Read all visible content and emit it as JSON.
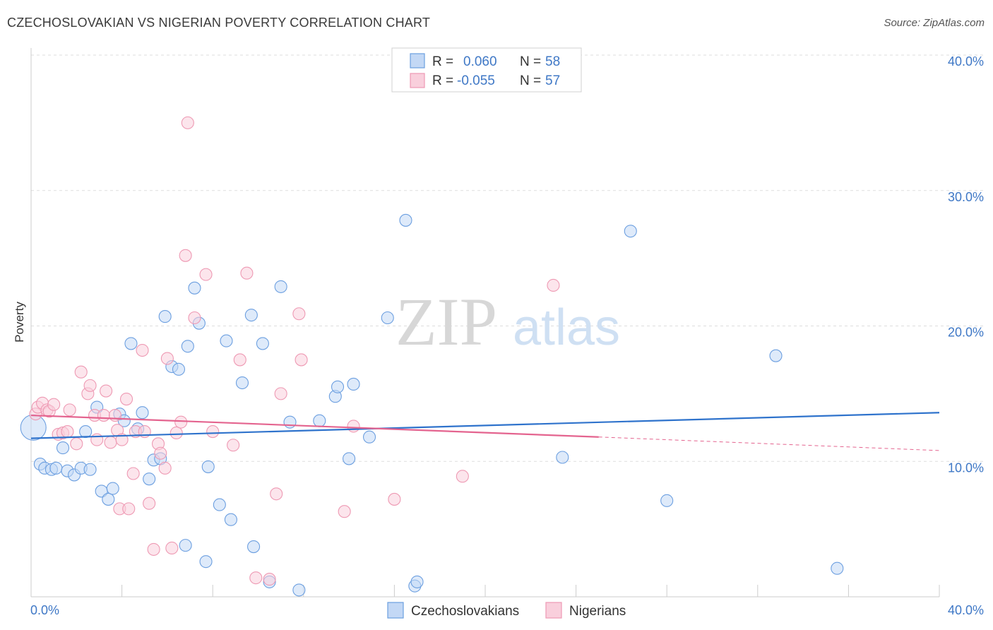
{
  "header": {
    "title": "CZECHOSLOVAKIAN VS NIGERIAN POVERTY CORRELATION CHART",
    "source": "Source: ZipAtlas.com"
  },
  "watermark": {
    "zip": "ZIP",
    "atlas": "atlas"
  },
  "chart_data": {
    "type": "scatter",
    "ylabel": "Poverty",
    "xlabel": "",
    "xlim": [
      0,
      40
    ],
    "ylim": [
      0,
      40
    ],
    "x_tick_labels": [
      {
        "value": 0,
        "label": "0.0%"
      },
      {
        "value": 40,
        "label": "40.0%"
      }
    ],
    "y_tick_labels": [
      {
        "value": 10,
        "label": "10.0%"
      },
      {
        "value": 20,
        "label": "20.0%"
      },
      {
        "value": 30,
        "label": "30.0%"
      },
      {
        "value": 40,
        "label": "40.0%"
      }
    ],
    "grid": true,
    "legend_position": "bottom",
    "stats_box": {
      "r_label": "R =",
      "n_label": "N =",
      "rows": [
        {
          "series": "Czechoslovakians",
          "r": "0.060",
          "n": "58"
        },
        {
          "series": "Nigerians",
          "r": "-0.055",
          "n": "57"
        }
      ]
    },
    "series": [
      {
        "name": "Czechoslovakians",
        "color": "#6c9fe0",
        "fill": "#c3d8f5",
        "trend": {
          "x": [
            0,
            40
          ],
          "y": [
            11.7,
            13.6
          ],
          "color": "#2f73cc"
        },
        "points": [
          [
            0.1,
            12.5
          ],
          [
            0.4,
            9.8
          ],
          [
            0.6,
            9.5
          ],
          [
            0.9,
            9.4
          ],
          [
            1.1,
            9.5
          ],
          [
            1.4,
            11.0
          ],
          [
            1.6,
            9.3
          ],
          [
            1.9,
            9.0
          ],
          [
            2.2,
            9.5
          ],
          [
            2.4,
            12.2
          ],
          [
            2.6,
            9.4
          ],
          [
            2.9,
            14.0
          ],
          [
            3.1,
            7.8
          ],
          [
            3.4,
            7.2
          ],
          [
            3.6,
            8.0
          ],
          [
            3.9,
            13.5
          ],
          [
            4.1,
            13.0
          ],
          [
            4.4,
            18.7
          ],
          [
            4.7,
            12.4
          ],
          [
            4.9,
            13.6
          ],
          [
            5.2,
            8.7
          ],
          [
            5.4,
            10.1
          ],
          [
            5.7,
            10.2
          ],
          [
            5.9,
            20.7
          ],
          [
            6.2,
            17.0
          ],
          [
            6.5,
            16.8
          ],
          [
            6.8,
            3.8
          ],
          [
            6.9,
            18.5
          ],
          [
            7.2,
            22.8
          ],
          [
            7.4,
            20.2
          ],
          [
            7.7,
            2.6
          ],
          [
            7.8,
            9.6
          ],
          [
            8.3,
            6.8
          ],
          [
            8.6,
            18.9
          ],
          [
            8.8,
            5.7
          ],
          [
            9.3,
            15.8
          ],
          [
            9.7,
            20.8
          ],
          [
            9.8,
            3.7
          ],
          [
            10.2,
            18.7
          ],
          [
            10.5,
            1.1
          ],
          [
            11.0,
            22.9
          ],
          [
            11.4,
            12.9
          ],
          [
            11.8,
            0.5
          ],
          [
            12.7,
            13.0
          ],
          [
            13.4,
            14.8
          ],
          [
            13.5,
            15.5
          ],
          [
            14.0,
            10.2
          ],
          [
            14.2,
            15.7
          ],
          [
            14.9,
            11.8
          ],
          [
            15.7,
            20.6
          ],
          [
            16.5,
            27.8
          ],
          [
            16.9,
            0.8
          ],
          [
            17.0,
            1.1
          ],
          [
            23.4,
            10.3
          ],
          [
            26.4,
            27.0
          ],
          [
            28.0,
            7.1
          ],
          [
            32.8,
            17.8
          ],
          [
            35.5,
            2.1
          ]
        ]
      },
      {
        "name": "Nigerians",
        "color": "#ee99b3",
        "fill": "#f9cfdc",
        "trend": {
          "x": [
            0,
            25
          ],
          "y": [
            13.4,
            11.8
          ],
          "color": "#e4648f"
        },
        "trend_ext": {
          "x": [
            25,
            40
          ],
          "y": [
            11.8,
            10.8
          ]
        },
        "points": [
          [
            0.2,
            13.5
          ],
          [
            0.3,
            14.0
          ],
          [
            0.5,
            14.3
          ],
          [
            0.7,
            13.8
          ],
          [
            0.8,
            13.7
          ],
          [
            1.0,
            14.2
          ],
          [
            1.2,
            12.0
          ],
          [
            1.4,
            12.1
          ],
          [
            1.6,
            12.2
          ],
          [
            1.7,
            13.8
          ],
          [
            2.0,
            11.3
          ],
          [
            2.2,
            16.6
          ],
          [
            2.5,
            15.0
          ],
          [
            2.6,
            15.6
          ],
          [
            2.8,
            13.4
          ],
          [
            2.9,
            11.6
          ],
          [
            3.2,
            13.4
          ],
          [
            3.3,
            15.2
          ],
          [
            3.5,
            11.4
          ],
          [
            3.7,
            13.4
          ],
          [
            3.8,
            12.3
          ],
          [
            3.9,
            6.5
          ],
          [
            4.0,
            11.6
          ],
          [
            4.2,
            14.6
          ],
          [
            4.3,
            6.5
          ],
          [
            4.5,
            9.1
          ],
          [
            4.6,
            12.2
          ],
          [
            4.9,
            18.2
          ],
          [
            5.0,
            12.2
          ],
          [
            5.2,
            6.9
          ],
          [
            5.4,
            3.5
          ],
          [
            5.6,
            11.3
          ],
          [
            5.7,
            10.6
          ],
          [
            5.9,
            9.5
          ],
          [
            6.0,
            17.6
          ],
          [
            6.2,
            3.6
          ],
          [
            6.4,
            12.1
          ],
          [
            6.6,
            12.9
          ],
          [
            6.8,
            25.2
          ],
          [
            6.9,
            35.0
          ],
          [
            7.2,
            20.6
          ],
          [
            7.7,
            23.8
          ],
          [
            8.0,
            12.2
          ],
          [
            8.9,
            11.2
          ],
          [
            9.2,
            17.5
          ],
          [
            9.5,
            23.9
          ],
          [
            9.9,
            1.4
          ],
          [
            10.5,
            1.3
          ],
          [
            10.8,
            7.6
          ],
          [
            11.0,
            15.0
          ],
          [
            11.8,
            20.9
          ],
          [
            11.9,
            17.5
          ],
          [
            13.8,
            6.3
          ],
          [
            14.2,
            12.6
          ],
          [
            16.0,
            7.2
          ],
          [
            19.0,
            8.9
          ],
          [
            23.0,
            23.0
          ]
        ]
      }
    ]
  }
}
